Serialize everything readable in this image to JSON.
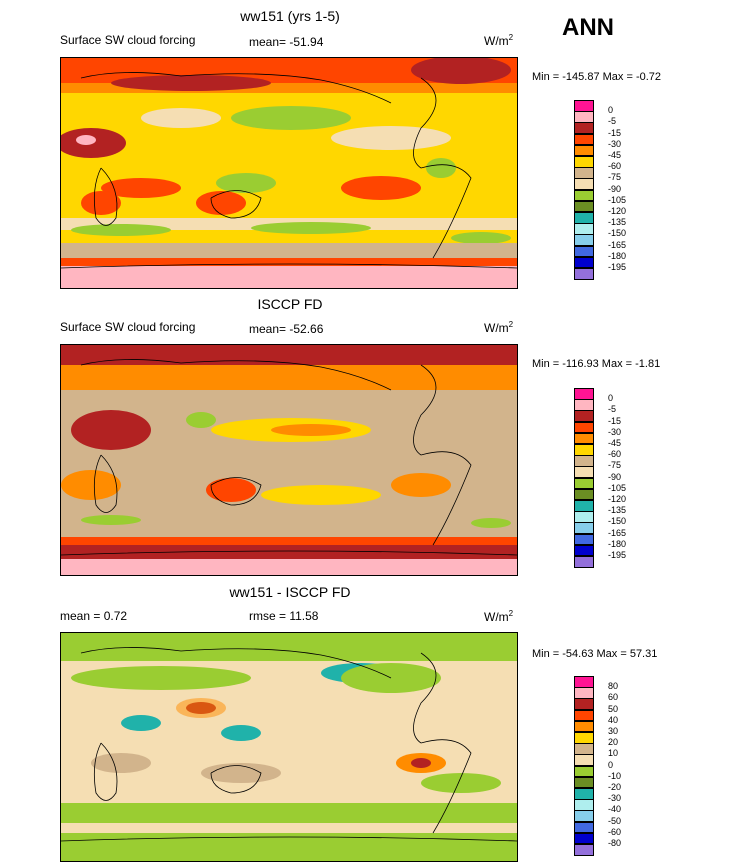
{
  "season": "ANN",
  "panels": [
    {
      "title": "ww151 (yrs 1-5)",
      "left_label": "Surface SW cloud forcing",
      "center_label": "mean= -51.94",
      "units_base": "W/m",
      "units_exp": "2",
      "minmax": "Min = -145.87 Max =  -0.72",
      "levels": [
        "0",
        "-5",
        "-15",
        "-30",
        "-45",
        "-60",
        "-75",
        "-90",
        "-105",
        "-120",
        "-135",
        "-150",
        "-165",
        "-180",
        "-195"
      ],
      "colors": [
        "#ff1493",
        "#ffb6c1",
        "#b22222",
        "#ff4500",
        "#ff8c00",
        "#ffd700",
        "#d2b48c",
        "#f5deb3",
        "#9acd32",
        "#6b8e23",
        "#20b2aa",
        "#afeeee",
        "#87ceeb",
        "#4169e1",
        "#0000cd",
        "#9370db"
      ]
    },
    {
      "title": "ISCCP FD",
      "left_label": "Surface SW cloud forcing",
      "center_label": "mean= -52.66",
      "units_base": "W/m",
      "units_exp": "2",
      "minmax": "Min = -116.93 Max =  -1.81",
      "levels": [
        "0",
        "-5",
        "-15",
        "-30",
        "-45",
        "-60",
        "-75",
        "-90",
        "-105",
        "-120",
        "-135",
        "-150",
        "-165",
        "-180",
        "-195"
      ],
      "colors": [
        "#ff1493",
        "#ffb6c1",
        "#b22222",
        "#ff4500",
        "#ff8c00",
        "#ffd700",
        "#d2b48c",
        "#f5deb3",
        "#9acd32",
        "#6b8e23",
        "#20b2aa",
        "#afeeee",
        "#87ceeb",
        "#4169e1",
        "#0000cd",
        "#9370db"
      ]
    },
    {
      "title": "ww151 - ISCCP FD",
      "left_label": "mean =   0.72",
      "center_label": "rmse =  11.58",
      "units_base": "W/m",
      "units_exp": "2",
      "minmax": "Min = -54.63 Max =  57.31",
      "levels": [
        "80",
        "60",
        "50",
        "40",
        "30",
        "20",
        "10",
        "0",
        "-10",
        "-20",
        "-30",
        "-40",
        "-50",
        "-60",
        "-80"
      ],
      "colors": [
        "#ff1493",
        "#ffb6c1",
        "#b22222",
        "#ff4500",
        "#ff8c00",
        "#ffd700",
        "#d2b48c",
        "#f5deb3",
        "#9acd32",
        "#6b8e23",
        "#20b2aa",
        "#afeeee",
        "#87ceeb",
        "#4169e1",
        "#0000cd",
        "#9370db"
      ]
    }
  ],
  "chart_data": [
    {
      "type": "heatmap",
      "title": "ww151 (yrs 1-5)",
      "variable": "Surface SW cloud forcing",
      "units": "W/m2",
      "mean": -51.94,
      "min": -145.87,
      "max": -0.72,
      "contour_levels": [
        0,
        -5,
        -15,
        -30,
        -45,
        -60,
        -75,
        -90,
        -105,
        -120,
        -135,
        -150,
        -165,
        -180,
        -195
      ],
      "season": "ANN"
    },
    {
      "type": "heatmap",
      "title": "ISCCP FD",
      "variable": "Surface SW cloud forcing",
      "units": "W/m2",
      "mean": -52.66,
      "min": -116.93,
      "max": -1.81,
      "contour_levels": [
        0,
        -5,
        -15,
        -30,
        -45,
        -60,
        -75,
        -90,
        -105,
        -120,
        -135,
        -150,
        -165,
        -180,
        -195
      ],
      "season": "ANN"
    },
    {
      "type": "heatmap",
      "title": "ww151 - ISCCP FD",
      "units": "W/m2",
      "mean": 0.72,
      "rmse": 11.58,
      "min": -54.63,
      "max": 57.31,
      "contour_levels": [
        80,
        60,
        50,
        40,
        30,
        20,
        10,
        0,
        -10,
        -20,
        -30,
        -40,
        -50,
        -60,
        -80
      ],
      "season": "ANN"
    }
  ]
}
